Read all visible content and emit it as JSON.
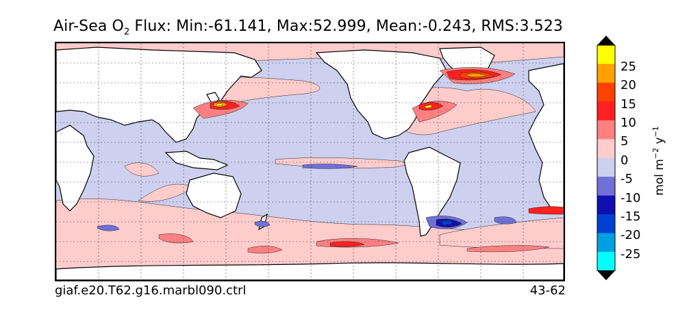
{
  "title": {
    "prefix": "Air-Sea O",
    "subscript": "2",
    "rest": " Flux: Min:-61.141, Max:52.999, Mean:-0.243, RMS:3.523"
  },
  "footer": {
    "left": "giaf.e20.T62.g16.marbl090.ctrl",
    "right": "43-62"
  },
  "colorbar": {
    "units": {
      "base": "mol m",
      "exp1": "−2",
      "mid": " y",
      "exp2": "−1"
    },
    "ticks": [
      "25",
      "20",
      "15",
      "10",
      "5",
      "0",
      "-5",
      "-10",
      "-15",
      "-20",
      "-25"
    ],
    "colors": [
      "#000000",
      "#ffff00",
      "#ffa000",
      "#ff4000",
      "#ff2020",
      "#ff8080",
      "#ffcccc",
      "#cdd0ee",
      "#7070d8",
      "#1010b0",
      "#0040d0",
      "#00a0e0",
      "#00ffff",
      "#000000"
    ]
  },
  "map": {
    "colors": {
      "ocean_base": "#cdd0ee",
      "land": "#ffffff",
      "pos_light": "#ffcccc",
      "pos_med": "#ff8080",
      "pos_strong": "#ff2020",
      "pos_stronger": "#ff4000",
      "pos_very": "#ffa000",
      "pos_max": "#ffff00",
      "neg_light": "#7070d8",
      "neg_med": "#1010b0",
      "neg_strong": "#0040d0"
    }
  }
}
